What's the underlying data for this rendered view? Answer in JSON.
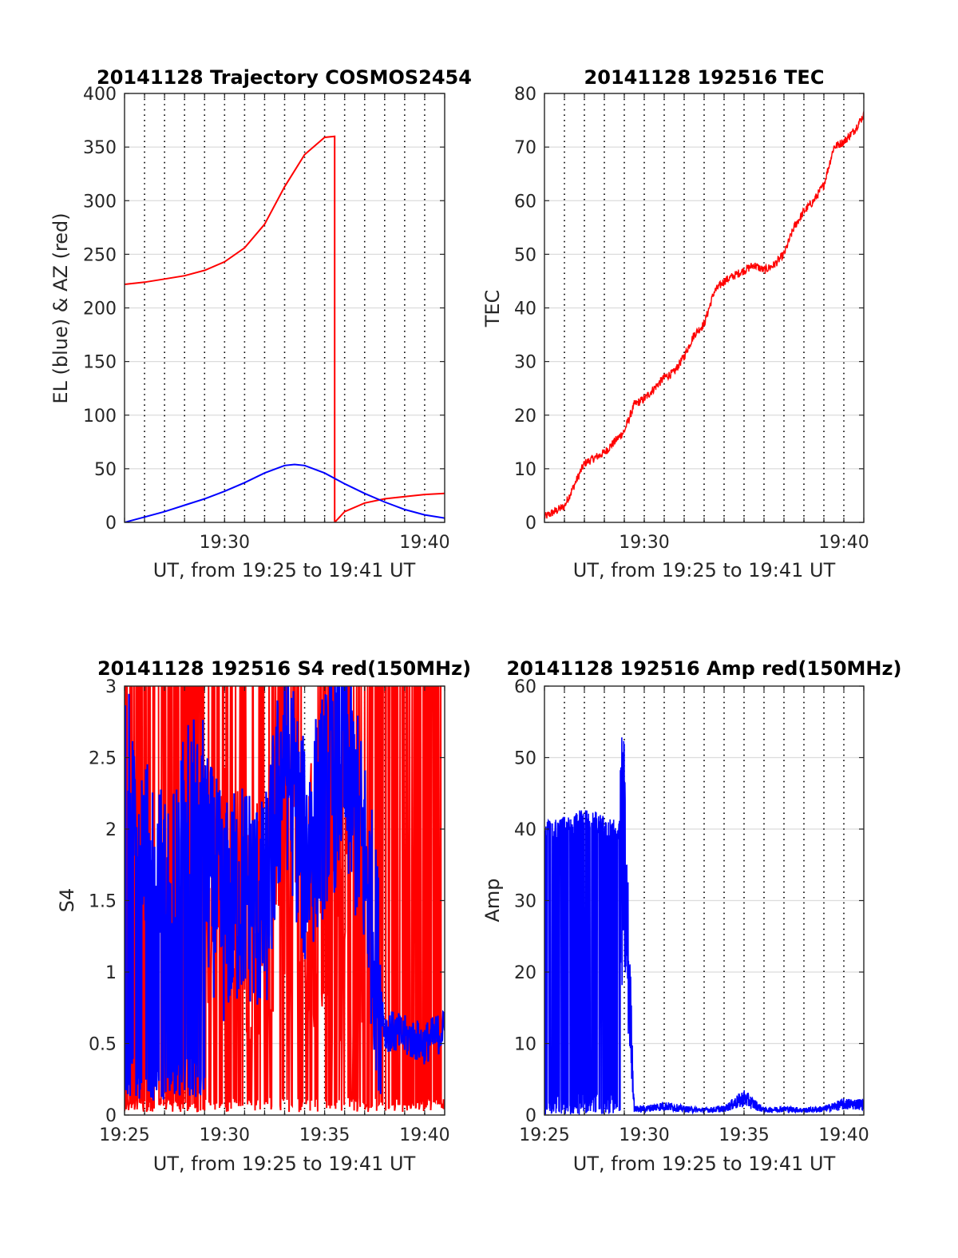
{
  "figure": {
    "background": "#ffffff",
    "panel_count": 4
  },
  "chart_data": [
    {
      "id": "trajectory",
      "type": "line",
      "title": "20141128 Trajectory COSMOS2454",
      "xlabel": "UT, from 19:25 to 19:41 UT",
      "ylabel": "EL (blue) & AZ (red)",
      "xlim": [
        "19:25",
        "19:41"
      ],
      "ylim": [
        0,
        400
      ],
      "yticks": [
        0,
        50,
        100,
        150,
        200,
        250,
        300,
        350,
        400
      ],
      "ytick_labels": [
        "0",
        "50",
        "100",
        "150",
        "200",
        "250",
        "300",
        "350",
        "400"
      ],
      "xticks": [
        "19:30",
        "19:40"
      ],
      "grid": true,
      "series": [
        {
          "color": "#ff0000",
          "points": [
            [
              "19:25",
              222
            ],
            [
              "19:26",
              224
            ],
            [
              "19:27",
              227
            ],
            [
              "19:28",
              230
            ],
            [
              "19:29",
              235
            ],
            [
              "19:30",
              243
            ],
            [
              "19:31",
              256
            ],
            [
              "19:32",
              278
            ],
            [
              "19:33",
              313
            ],
            [
              "19:34",
              343
            ],
            [
              "19:35",
              359
            ],
            [
              "19:35.5",
              360
            ],
            [
              "19:35.5",
              0
            ],
            [
              "19:36",
              10
            ],
            [
              "19:37",
              18
            ],
            [
              "19:38",
              22
            ],
            [
              "19:39",
              24
            ],
            [
              "19:40",
              26
            ],
            [
              "19:41",
              27
            ]
          ]
        },
        {
          "color": "#0000ff",
          "points": [
            [
              "19:25",
              0
            ],
            [
              "19:26",
              5
            ],
            [
              "19:27",
              10
            ],
            [
              "19:28",
              16
            ],
            [
              "19:29",
              22
            ],
            [
              "19:30",
              29
            ],
            [
              "19:31",
              37
            ],
            [
              "19:32",
              46
            ],
            [
              "19:33",
              53
            ],
            [
              "19:33.5",
              54
            ],
            [
              "19:34",
              53
            ],
            [
              "19:35",
              46
            ],
            [
              "19:36",
              36
            ],
            [
              "19:37",
              27
            ],
            [
              "19:38",
              19
            ],
            [
              "19:39",
              12
            ],
            [
              "19:40",
              7
            ],
            [
              "19:41",
              4
            ]
          ]
        }
      ]
    },
    {
      "id": "tec",
      "type": "line",
      "title": "20141128 192516 TEC",
      "xlabel": "UT, from 19:25 to 19:41 UT",
      "ylabel": "TEC",
      "xlim": [
        "19:25",
        "19:41"
      ],
      "ylim": [
        0,
        80
      ],
      "yticks": [
        0,
        10,
        20,
        30,
        40,
        50,
        60,
        70,
        80
      ],
      "ytick_labels": [
        "0",
        "10",
        "20",
        "30",
        "40",
        "50",
        "60",
        "70",
        "80"
      ],
      "xticks": [
        "19:30",
        "19:40"
      ],
      "grid": true,
      "series": [
        {
          "color": "#ff0000",
          "points": [
            [
              "19:25",
              1
            ],
            [
              "19:25.5",
              2
            ],
            [
              "19:26",
              3
            ],
            [
              "19:26.5",
              7
            ],
            [
              "19:27",
              11
            ],
            [
              "19:27.5",
              12
            ],
            [
              "19:28",
              13
            ],
            [
              "19:28.5",
              15
            ],
            [
              "19:29",
              17
            ],
            [
              "19:29.5",
              22
            ],
            [
              "19:30",
              23
            ],
            [
              "19:30.5",
              25
            ],
            [
              "19:31",
              27
            ],
            [
              "19:31.5",
              28
            ],
            [
              "19:32",
              31
            ],
            [
              "19:32.5",
              35
            ],
            [
              "19:33",
              37
            ],
            [
              "19:33.5",
              43
            ],
            [
              "19:34",
              45
            ],
            [
              "19:34.5",
              46
            ],
            [
              "19:35",
              47
            ],
            [
              "19:35.5",
              48
            ],
            [
              "19:36",
              47
            ],
            [
              "19:36.5",
              48
            ],
            [
              "19:37",
              50
            ],
            [
              "19:37.5",
              55
            ],
            [
              "19:38",
              58
            ],
            [
              "19:38.5",
              60
            ],
            [
              "19:39",
              63
            ],
            [
              "19:39.5",
              70
            ],
            [
              "19:40",
              71
            ],
            [
              "19:40.5",
              73
            ],
            [
              "19:41",
              76
            ]
          ]
        }
      ]
    },
    {
      "id": "s4",
      "type": "line",
      "title": "20141128 192516 S4 red(150MHz)",
      "xlabel": "UT, from 19:25 to 19:41 UT",
      "ylabel": "S4",
      "xlim": [
        "19:25",
        "19:41"
      ],
      "ylim": [
        0,
        3
      ],
      "yticks": [
        0,
        0.5,
        1,
        1.5,
        2,
        2.5,
        3
      ],
      "ytick_labels": [
        "0",
        "0.5",
        "1",
        "1.5",
        "2",
        "2.5",
        "3"
      ],
      "xticks": [
        "19:25",
        "19:30",
        "19:35",
        "19:40"
      ],
      "grid": true,
      "series": [
        {
          "color": "#ff0000",
          "pattern": "oscillates between 0 and 3 across most of the interval, densest 19:25-19:29 and 19:37-19:41",
          "noisy_fill": true,
          "min": 0,
          "max": 3
        },
        {
          "color": "#0000ff",
          "points": [
            [
              "19:25",
              1.9
            ],
            [
              "19:26",
              1.3
            ],
            [
              "19:27",
              1.1
            ],
            [
              "19:28",
              1.5
            ],
            [
              "19:29",
              1.8
            ],
            [
              "19:30",
              1.4
            ],
            [
              "19:31",
              1.6
            ],
            [
              "19:32",
              1.4
            ],
            [
              "19:33",
              2.6
            ],
            [
              "19:34",
              1.8
            ],
            [
              "19:35",
              2.2
            ],
            [
              "19:36",
              2.5
            ],
            [
              "19:37",
              1.8
            ],
            [
              "19:38",
              0.6
            ],
            [
              "19:39",
              0.55
            ],
            [
              "19:40",
              0.5
            ],
            [
              "19:41",
              0.6
            ]
          ],
          "noisy_fill": true
        }
      ]
    },
    {
      "id": "amp",
      "type": "line",
      "title": "20141128 192516 Amp red(150MHz)",
      "xlabel": "UT, from 19:25 to 19:41 UT",
      "ylabel": "Amp",
      "xlim": [
        "19:25",
        "19:41"
      ],
      "ylim": [
        0,
        60
      ],
      "yticks": [
        0,
        10,
        20,
        30,
        40,
        50,
        60
      ],
      "ytick_labels": [
        "0",
        "10",
        "20",
        "30",
        "40",
        "50",
        "60"
      ],
      "xticks": [
        "19:25",
        "19:30",
        "19:35",
        "19:40"
      ],
      "grid": true,
      "series": [
        {
          "color": "#0000ff",
          "pattern": "dense oscillation 0-42 from 19:25 to 19:29, then near 1 with small bursts",
          "points": [
            [
              "19:25",
              41
            ],
            [
              "19:26",
              42
            ],
            [
              "19:27",
              43
            ],
            [
              "19:28",
              42
            ],
            [
              "19:29",
              41
            ],
            [
              "19:29.5",
              1
            ],
            [
              "19:30",
              1
            ],
            [
              "19:31",
              1.5
            ],
            [
              "19:32",
              1
            ],
            [
              "19:33",
              0.8
            ],
            [
              "19:34",
              1
            ],
            [
              "19:35",
              2.8
            ],
            [
              "19:36",
              0.8
            ],
            [
              "19:37",
              1
            ],
            [
              "19:38",
              0.8
            ],
            [
              "19:39",
              1
            ],
            [
              "19:40",
              1.8
            ],
            [
              "19:41",
              1.8
            ]
          ]
        }
      ]
    }
  ]
}
